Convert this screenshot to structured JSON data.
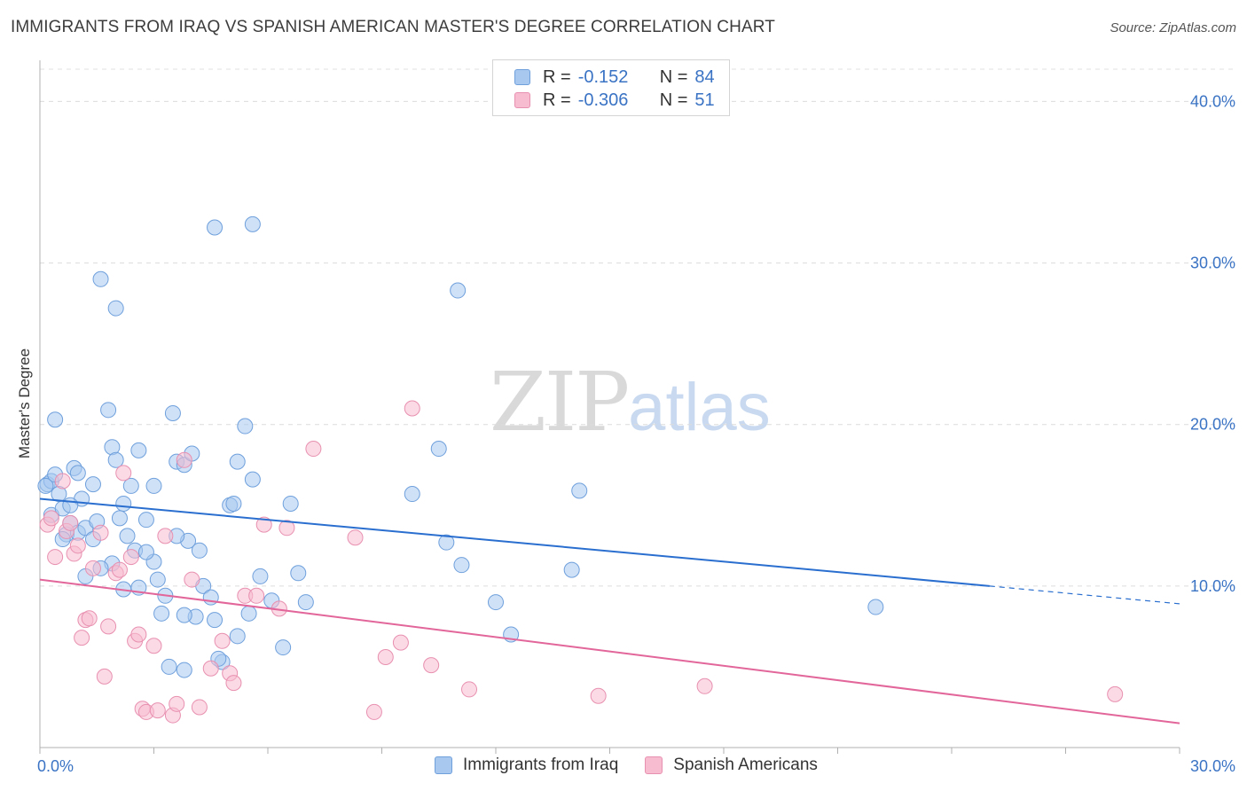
{
  "title": "IMMIGRANTS FROM IRAQ VS SPANISH AMERICAN MASTER'S DEGREE CORRELATION CHART",
  "source": "Source: ZipAtlas.com",
  "watermark": {
    "zip": "ZIP",
    "atlas": "atlas"
  },
  "legend": {
    "r_label": "R =",
    "n_label": "N =",
    "rows": [
      {
        "r": "-0.152",
        "n": "84",
        "color": "#a8c8f0",
        "border": "#6fa0dc"
      },
      {
        "r": "-0.306",
        "n": "51",
        "color": "#f7bcd0",
        "border": "#e890b0"
      }
    ]
  },
  "bottom_legend": [
    "Immigrants from Iraq",
    "Spanish Americans"
  ],
  "colors": {
    "blue_fill": "#a8c8f0",
    "blue_stroke": "#6fa0dc",
    "blue_line": "#2a6fcf",
    "pink_fill": "#f7bcd0",
    "pink_stroke": "#e890b0",
    "pink_line": "#e2669a",
    "tick_text": "#3a73c4"
  },
  "chart_data": {
    "type": "scatter",
    "title": "IMMIGRANTS FROM IRAQ VS SPANISH AMERICAN MASTER'S DEGREE CORRELATION CHART",
    "xlabel": "",
    "ylabel": "Master's Degree",
    "xlim": [
      0,
      30
    ],
    "ylim": [
      0,
      42
    ],
    "x_tick_labels": [
      "0.0%",
      "30.0%"
    ],
    "y_ticks": [
      10,
      20,
      30,
      40
    ],
    "y_tick_labels": [
      "10.0%",
      "20.0%",
      "30.0%",
      "40.0%"
    ],
    "series": [
      {
        "name": "Immigrants from Iraq",
        "r": -0.152,
        "n": 84,
        "trend": {
          "x0": 0,
          "y0": 15.4,
          "x1": 25.0,
          "y1": 10.0,
          "dash_to_x": 30,
          "dash_to_y": 8.9
        },
        "points": [
          [
            0.2,
            16.3
          ],
          [
            0.3,
            16.5
          ],
          [
            0.15,
            16.2
          ],
          [
            0.4,
            16.9
          ],
          [
            0.5,
            15.7
          ],
          [
            0.3,
            14.4
          ],
          [
            0.6,
            14.8
          ],
          [
            0.7,
            13.2
          ],
          [
            0.8,
            13.9
          ],
          [
            0.9,
            17.3
          ],
          [
            1.0,
            17.0
          ],
          [
            1.1,
            15.4
          ],
          [
            1.0,
            13.3
          ],
          [
            1.2,
            13.6
          ],
          [
            1.4,
            16.3
          ],
          [
            1.5,
            14.0
          ],
          [
            0.6,
            12.9
          ],
          [
            0.4,
            20.3
          ],
          [
            1.8,
            20.9
          ],
          [
            1.9,
            18.6
          ],
          [
            2.0,
            17.8
          ],
          [
            2.2,
            15.1
          ],
          [
            2.3,
            13.1
          ],
          [
            2.5,
            12.2
          ],
          [
            2.6,
            9.9
          ],
          [
            2.8,
            14.1
          ],
          [
            3.0,
            11.5
          ],
          [
            3.1,
            10.4
          ],
          [
            3.2,
            8.3
          ],
          [
            3.3,
            9.4
          ],
          [
            3.5,
            20.7
          ],
          [
            3.6,
            17.7
          ],
          [
            3.8,
            17.5
          ],
          [
            3.9,
            12.8
          ],
          [
            4.0,
            18.2
          ],
          [
            4.2,
            12.2
          ],
          [
            4.3,
            10.0
          ],
          [
            4.1,
            8.1
          ],
          [
            4.5,
            9.3
          ],
          [
            4.6,
            7.9
          ],
          [
            4.8,
            5.3
          ],
          [
            5.0,
            15.0
          ],
          [
            5.1,
            15.1
          ],
          [
            5.2,
            17.7
          ],
          [
            5.4,
            19.9
          ],
          [
            5.6,
            16.6
          ],
          [
            5.8,
            10.6
          ],
          [
            6.1,
            9.1
          ],
          [
            6.4,
            6.2
          ],
          [
            6.6,
            15.1
          ],
          [
            6.8,
            10.8
          ],
          [
            7.0,
            9.0
          ],
          [
            1.6,
            29.0
          ],
          [
            2.0,
            27.2
          ],
          [
            4.6,
            32.2
          ],
          [
            5.6,
            32.4
          ],
          [
            11.0,
            28.3
          ],
          [
            10.5,
            18.5
          ],
          [
            9.8,
            15.7
          ],
          [
            10.7,
            12.7
          ],
          [
            11.1,
            11.3
          ],
          [
            12.0,
            9.0
          ],
          [
            12.4,
            7.0
          ],
          [
            14.0,
            11.0
          ],
          [
            14.2,
            15.9
          ],
          [
            22.0,
            8.7
          ],
          [
            2.6,
            18.4
          ],
          [
            1.9,
            11.4
          ],
          [
            2.2,
            9.8
          ],
          [
            3.8,
            8.2
          ],
          [
            4.7,
            5.5
          ],
          [
            3.4,
            5.0
          ],
          [
            3.8,
            4.8
          ],
          [
            5.2,
            6.9
          ],
          [
            5.5,
            8.3
          ],
          [
            1.4,
            12.9
          ],
          [
            2.8,
            12.1
          ],
          [
            3.6,
            13.1
          ],
          [
            3.0,
            16.2
          ],
          [
            2.1,
            14.2
          ],
          [
            1.2,
            10.6
          ],
          [
            2.4,
            16.2
          ],
          [
            0.8,
            15.0
          ],
          [
            1.6,
            11.1
          ]
        ]
      },
      {
        "name": "Spanish Americans",
        "r": -0.306,
        "n": 51,
        "trend": {
          "x0": 0,
          "y0": 10.4,
          "x1": 30,
          "y1": 1.5
        },
        "points": [
          [
            0.2,
            13.8
          ],
          [
            0.3,
            14.2
          ],
          [
            0.4,
            11.8
          ],
          [
            0.6,
            16.5
          ],
          [
            0.7,
            13.4
          ],
          [
            0.8,
            13.9
          ],
          [
            0.9,
            12.0
          ],
          [
            1.0,
            12.5
          ],
          [
            1.1,
            6.8
          ],
          [
            1.2,
            7.9
          ],
          [
            1.4,
            11.1
          ],
          [
            1.6,
            13.3
          ],
          [
            1.7,
            4.4
          ],
          [
            1.8,
            7.5
          ],
          [
            2.0,
            10.8
          ],
          [
            2.1,
            11.0
          ],
          [
            2.2,
            17.0
          ],
          [
            2.4,
            11.8
          ],
          [
            2.5,
            6.6
          ],
          [
            2.6,
            7.0
          ],
          [
            2.7,
            2.4
          ],
          [
            2.8,
            2.2
          ],
          [
            3.0,
            6.3
          ],
          [
            3.1,
            2.3
          ],
          [
            3.3,
            13.1
          ],
          [
            3.5,
            2.0
          ],
          [
            3.6,
            2.7
          ],
          [
            3.8,
            17.8
          ],
          [
            4.0,
            10.4
          ],
          [
            4.2,
            2.5
          ],
          [
            4.5,
            4.9
          ],
          [
            4.8,
            6.6
          ],
          [
            5.0,
            4.6
          ],
          [
            5.1,
            4.0
          ],
          [
            5.4,
            9.4
          ],
          [
            5.7,
            9.4
          ],
          [
            5.9,
            13.8
          ],
          [
            6.3,
            8.6
          ],
          [
            6.5,
            13.6
          ],
          [
            7.2,
            18.5
          ],
          [
            8.3,
            13.0
          ],
          [
            8.8,
            2.2
          ],
          [
            9.1,
            5.6
          ],
          [
            9.5,
            6.5
          ],
          [
            9.8,
            21.0
          ],
          [
            10.3,
            5.1
          ],
          [
            11.3,
            3.6
          ],
          [
            14.7,
            3.2
          ],
          [
            17.5,
            3.8
          ],
          [
            28.3,
            3.3
          ],
          [
            1.3,
            8.0
          ]
        ]
      }
    ]
  }
}
